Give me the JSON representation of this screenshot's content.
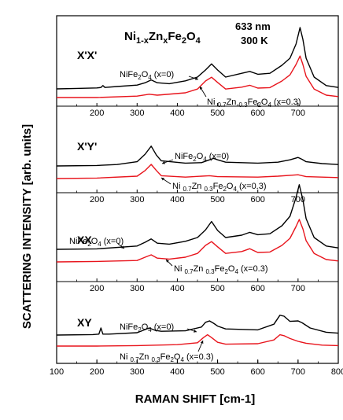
{
  "chart_data": {
    "type": "line",
    "title": "Ni1-xZnxFe2O4",
    "title_parts": {
      "base1": "Ni",
      "sub1": "1-x",
      "base2": "Zn",
      "sub2": "x",
      "base3": "Fe",
      "sub3": "2",
      "base4": "O",
      "sub4": "4"
    },
    "wavelength": "633 nm",
    "temperature": "300 K",
    "xlabel": "RAMAN SHIFT [cm-1]",
    "ylabel": "SCATTERING INTENSITY [arb. units]",
    "xlim": [
      100,
      800
    ],
    "x_ticks": [
      "100",
      "200",
      "300",
      "400",
      "500",
      "600",
      "700",
      "800"
    ],
    "panel_x_ticks": [
      "200",
      "300",
      "400",
      "500",
      "600",
      "700"
    ],
    "grid": false,
    "series_colors": {
      "x0": "#000000",
      "x03": "#e8141c"
    },
    "annotation_x0": {
      "base": "NiFe",
      "sub1": "2",
      "mid": "O",
      "sub2": "4",
      "tail": " (x=0)"
    },
    "annotation_x03": {
      "base": "Ni ",
      "sub1": "0.7",
      "mid1": "Zn ",
      "sub2": "0.3",
      "mid2": "Fe",
      "sub3": "2",
      "mid3": "O",
      "sub4": "4",
      "tail": " (x=0.3)"
    },
    "panels": [
      {
        "label": "X'X'",
        "series": [
          {
            "key": "x0",
            "x": [
              100,
              150,
              200,
              210,
              215,
              220,
              250,
              300,
              320,
              335,
              350,
              380,
              420,
              450,
              470,
              485,
              500,
              520,
              560,
              580,
              600,
              630,
              660,
              680,
              695,
              705,
              712,
              720,
              740,
              770,
              800
            ],
            "y": [
              0.5,
              0.6,
              0.7,
              0.8,
              1.2,
              0.8,
              1.0,
              1.3,
              1.8,
              2.4,
              1.8,
              1.6,
              2.2,
              3.0,
              4.5,
              5.8,
              4.5,
              3.0,
              3.8,
              4.2,
              3.6,
              3.8,
              5.5,
              7.0,
              10.0,
              13.5,
              11.0,
              7.0,
              3.0,
              1.2,
              0.8
            ]
          },
          {
            "key": "x03",
            "x": [
              100,
              200,
              300,
              330,
              350,
              420,
              450,
              470,
              485,
              500,
              520,
              560,
              580,
              600,
              630,
              660,
              680,
              695,
              705,
              712,
              720,
              740,
              770,
              800
            ],
            "y": [
              0.0,
              0.0,
              0.3,
              0.7,
              0.5,
              1.0,
              1.8,
              3.5,
              4.3,
              3.2,
              1.8,
              2.2,
              2.6,
              2.0,
              2.1,
              3.5,
              4.8,
              7.0,
              8.8,
              7.0,
              4.5,
              1.8,
              0.5,
              0.2
            ]
          }
        ]
      },
      {
        "label": "X'Y'",
        "series": [
          {
            "key": "x0",
            "x": [
              100,
              200,
              250,
              300,
              320,
              335,
              348,
              360,
              420,
              460,
              480,
              490,
              500,
              520,
              600,
              650,
              680,
              700,
              710,
              720,
              760,
              800
            ],
            "y": [
              0.5,
              0.6,
              0.8,
              1.4,
              3.0,
              4.7,
              2.8,
              1.6,
              1.1,
              1.2,
              1.8,
              2.1,
              1.8,
              1.3,
              1.1,
              1.3,
              1.8,
              2.3,
              1.9,
              1.4,
              1.0,
              0.8
            ]
          },
          {
            "key": "x03",
            "x": [
              100,
              200,
              300,
              320,
              335,
              348,
              360,
              420,
              480,
              500,
              600,
              650,
              700,
              720,
              800
            ],
            "y": [
              0.0,
              0.1,
              0.5,
              1.7,
              3.0,
              1.7,
              0.6,
              0.3,
              0.6,
              0.4,
              0.3,
              0.5,
              0.8,
              0.4,
              0.2
            ]
          }
        ]
      },
      {
        "label": "XX",
        "series": [
          {
            "key": "x0",
            "x": [
              100,
              200,
              300,
              320,
              335,
              350,
              380,
              420,
              450,
              470,
              485,
              500,
              520,
              560,
              580,
              600,
              630,
              660,
              680,
              695,
              703,
              712,
              720,
              740,
              770,
              800
            ],
            "y": [
              0.5,
              0.6,
              1.2,
              2.0,
              2.7,
              1.8,
              1.6,
              2.2,
              3.0,
              4.6,
              6.4,
              4.5,
              3.0,
              3.5,
              4.1,
              3.6,
              3.8,
              5.5,
              7.5,
              11.5,
              14.2,
              11.0,
              7.0,
              3.0,
              1.2,
              0.8
            ]
          },
          {
            "key": "x03",
            "x": [
              100,
              200,
              300,
              320,
              335,
              350,
              380,
              420,
              450,
              470,
              485,
              500,
              520,
              560,
              580,
              600,
              630,
              660,
              680,
              695,
              703,
              712,
              720,
              740,
              770,
              800
            ],
            "y": [
              0.0,
              0.1,
              0.3,
              1.0,
              1.5,
              0.8,
              0.6,
              1.0,
              1.8,
              3.5,
              4.3,
              3.2,
              1.8,
              2.2,
              2.8,
              2.0,
              2.1,
              3.5,
              5.0,
              7.5,
              9.0,
              7.0,
              4.5,
              1.8,
              0.5,
              0.2
            ]
          }
        ]
      },
      {
        "label": "XY",
        "series": [
          {
            "key": "x0",
            "x": [
              100,
              190,
              205,
              210,
              215,
              230,
              300,
              330,
              345,
              360,
              420,
              460,
              470,
              480,
              490,
              500,
              520,
              600,
              640,
              655,
              665,
              680,
              700,
              710,
              730,
              770,
              800
            ],
            "y": [
              0.5,
              0.6,
              0.7,
              2.0,
              0.7,
              0.7,
              1.0,
              2.0,
              1.5,
              1.3,
              1.4,
              2.2,
              3.2,
              3.5,
              3.0,
              2.4,
              1.8,
              1.6,
              2.8,
              4.7,
              4.5,
              3.4,
              3.5,
              3.1,
              2.0,
              1.1,
              0.9
            ]
          },
          {
            "key": "x03",
            "x": [
              100,
              200,
              300,
              400,
              450,
              465,
              475,
              485,
              500,
              520,
              600,
              640,
              655,
              665,
              680,
              700,
              720,
              760,
              800
            ],
            "y": [
              0.0,
              0.0,
              0.1,
              0.3,
              0.7,
              1.8,
              2.4,
              1.8,
              0.8,
              0.4,
              0.5,
              1.3,
              2.4,
              2.2,
              1.6,
              1.0,
              0.6,
              0.2,
              0.1
            ]
          }
        ]
      }
    ]
  }
}
